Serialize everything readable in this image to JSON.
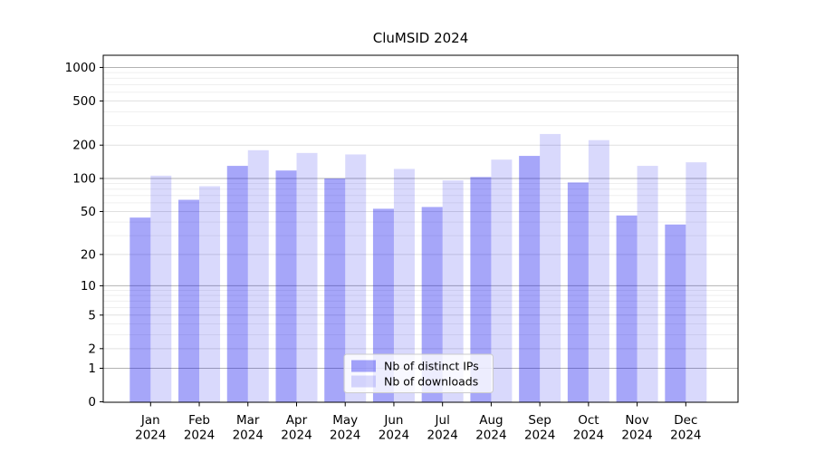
{
  "chart_data": {
    "type": "bar",
    "title": "CluMSID 2024",
    "year": "2024",
    "categories": [
      "Jan",
      "Feb",
      "Mar",
      "Apr",
      "May",
      "Jun",
      "Jul",
      "Aug",
      "Sep",
      "Oct",
      "Nov",
      "Dec"
    ],
    "series": [
      {
        "name": "Nb of distinct IPs",
        "color": "rgba(0,0,238,0.35)",
        "values": [
          44,
          64,
          130,
          118,
          100,
          53,
          55,
          103,
          160,
          92,
          46,
          38
        ]
      },
      {
        "name": "Nb of downloads",
        "color": "rgba(0,0,238,0.15)",
        "values": [
          106,
          85,
          180,
          170,
          165,
          122,
          96,
          148,
          252,
          222,
          130,
          140
        ]
      }
    ],
    "yscale": "log1p",
    "yticks": [
      0,
      1,
      2,
      5,
      10,
      20,
      50,
      100,
      200,
      500,
      1000
    ],
    "ylim": [
      0,
      1270
    ],
    "grid": "major+minor",
    "legend_position": "lower center",
    "colors": {
      "major_grid": "#b2b2b2",
      "labeled_grid": "#e0e0e0",
      "minor_grid": "#efefef",
      "spine": "#000000",
      "legend_border": "#cccccc"
    }
  }
}
